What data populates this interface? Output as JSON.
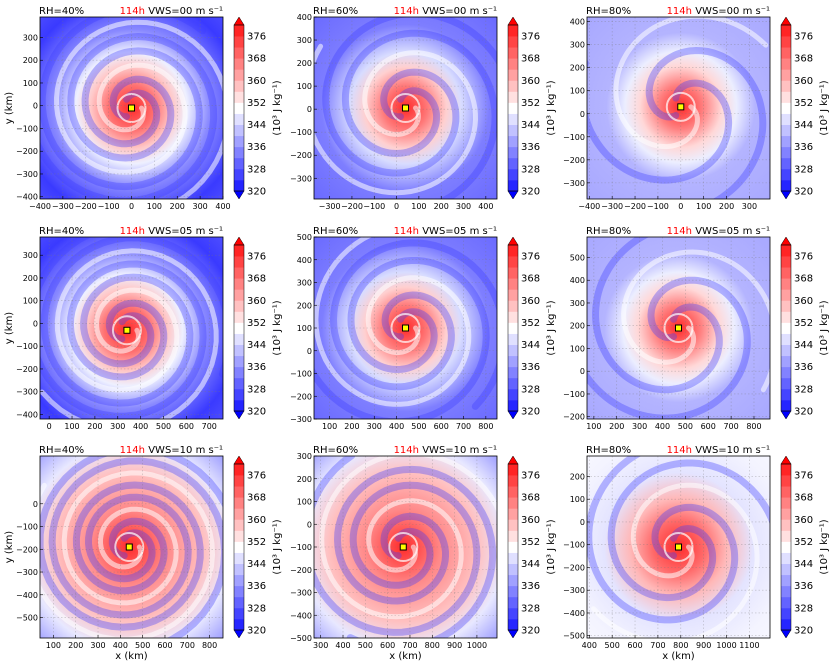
{
  "figure": {
    "time_label": "114h",
    "colorbar": {
      "ticks": [
        "376",
        "368",
        "360",
        "352",
        "344",
        "336",
        "328",
        "320"
      ],
      "unit": "(10³ J kg⁻¹)",
      "min": 320,
      "max": 380,
      "step": 4
    },
    "xlabel": "x (km)",
    "ylabel": "y (km)",
    "colors": {
      "low": "#1515ff",
      "mid": "#ffffff",
      "high": "#ff1515",
      "center": "#ffff00"
    }
  },
  "chart_data": [
    {
      "type": "heatmap",
      "rh": "RH=40%",
      "vws": "VWS=00 m s⁻¹",
      "time": "114h",
      "xlim": [
        -400,
        400
      ],
      "ylim": [
        -410,
        390
      ],
      "xticks": [
        "−400",
        "−300",
        "−200",
        "−100",
        "0",
        "100",
        "200",
        "300",
        "400"
      ],
      "yticks": [
        "300",
        "200",
        "100",
        "0",
        "−100",
        "−200",
        "−300",
        "−400"
      ],
      "center": [
        0,
        -10
      ]
    },
    {
      "type": "heatmap",
      "rh": "RH=60%",
      "vws": "VWS=00 m s⁻¹",
      "time": "114h",
      "xlim": [
        -370,
        450
      ],
      "ylim": [
        -390,
        400
      ],
      "xticks": [
        "−300",
        "−200",
        "−100",
        "0",
        "100",
        "200",
        "300",
        "400"
      ],
      "yticks": [
        "400",
        "300",
        "200",
        "100",
        "0",
        "−100",
        "−200",
        "−300"
      ],
      "center": [
        40,
        5
      ]
    },
    {
      "type": "heatmap",
      "rh": "RH=80%",
      "vws": "VWS=00 m s⁻¹",
      "time": "114h",
      "xlim": [
        -410,
        390
      ],
      "ylim": [
        -370,
        420
      ],
      "xticks": [
        "−400",
        "−300",
        "−200",
        "−100",
        "0",
        "100",
        "200",
        "300"
      ],
      "yticks": [
        "400",
        "300",
        "200",
        "100",
        "0",
        "−100",
        "−200",
        "−300"
      ],
      "center": [
        0,
        30
      ]
    },
    {
      "type": "heatmap",
      "rh": "RH=40%",
      "vws": "VWS=05 m s⁻¹",
      "time": "114h",
      "xlim": [
        -40,
        760
      ],
      "ylim": [
        -420,
        380
      ],
      "xticks": [
        "0",
        "100",
        "200",
        "300",
        "400",
        "500",
        "600",
        "700"
      ],
      "yticks": [
        "300",
        "200",
        "100",
        "0",
        "−100",
        "−200",
        "−300",
        "−400"
      ],
      "center": [
        340,
        -30
      ]
    },
    {
      "type": "heatmap",
      "rh": "RH=60%",
      "vws": "VWS=05 m s⁻¹",
      "time": "114h",
      "xlim": [
        30,
        850
      ],
      "ylim": [
        -300,
        500
      ],
      "xticks": [
        "100",
        "200",
        "300",
        "400",
        "500",
        "600",
        "700",
        "800"
      ],
      "yticks": [
        "500",
        "400",
        "300",
        "200",
        "100",
        "0",
        "−100",
        "−200",
        "−300"
      ],
      "center": [
        440,
        100
      ]
    },
    {
      "type": "heatmap",
      "rh": "RH=80%",
      "vws": "VWS=05 m s⁻¹",
      "time": "114h",
      "xlim": [
        70,
        870
      ],
      "ylim": [
        -210,
        590
      ],
      "xticks": [
        "100",
        "200",
        "300",
        "400",
        "500",
        "600",
        "700",
        "800"
      ],
      "yticks": [
        "500",
        "400",
        "300",
        "200",
        "100",
        "0",
        "−100",
        "−200"
      ],
      "center": [
        470,
        190
      ]
    },
    {
      "type": "heatmap",
      "rh": "RH=40%",
      "vws": "VWS=10 m s⁻¹",
      "time": "114h",
      "xlim": [
        40,
        860
      ],
      "ylim": [
        -590,
        210
      ],
      "xticks": [
        "100",
        "200",
        "300",
        "400",
        "500",
        "600",
        "700",
        "800"
      ],
      "yticks": [
        "0",
        "−100",
        "−200",
        "−300",
        "−400",
        "−500"
      ],
      "center": [
        440,
        -190
      ]
    },
    {
      "type": "heatmap",
      "rh": "RH=60%",
      "vws": "VWS=10 m s⁻¹",
      "time": "114h",
      "xlim": [
        270,
        1090
      ],
      "ylim": [
        -500,
        300
      ],
      "xticks": [
        "300",
        "400",
        "500",
        "600",
        "700",
        "800",
        "900",
        "1000"
      ],
      "yticks": [
        "300",
        "200",
        "100",
        "0",
        "−100",
        "−200",
        "−300",
        "−400",
        "−500"
      ],
      "center": [
        670,
        -100
      ]
    },
    {
      "type": "heatmap",
      "rh": "RH=80%",
      "vws": "VWS=10 m s⁻¹",
      "time": "114h",
      "xlim": [
        390,
        1190
      ],
      "ylim": [
        -510,
        290
      ],
      "xticks": [
        "400",
        "500",
        "600",
        "700",
        "800",
        "900",
        "1000",
        "1100"
      ],
      "yticks": [
        "200",
        "100",
        "0",
        "−100",
        "−200",
        "−300",
        "−400",
        "−500"
      ],
      "center": [
        790,
        -110
      ]
    }
  ]
}
